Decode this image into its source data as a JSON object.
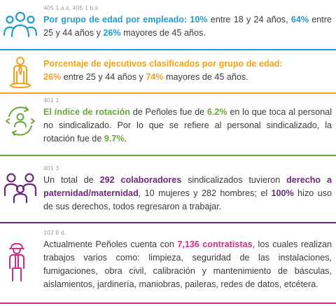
{
  "sections": [
    {
      "ref": "405 1 a.ii, 405 1 b.ii",
      "color": "#1e9ed6",
      "icon": "people-group-icon",
      "parts": [
        "Por grupo de edad por empleado:",
        " ",
        "10%",
        " entre 18 y 24 años, ",
        "64%",
        " entre 25 y 44  años y ",
        "26%",
        " mayores de 45 años."
      ]
    },
    {
      "ref": "",
      "color": "#f4a11a",
      "icon": "executive-person-icon",
      "parts": [
        "Porcentaje de ejecutivos clasificados por grupo de edad:",
        "26%",
        " entre 25 y 44 años y ",
        "74%",
        " mayores de 45 años."
      ]
    },
    {
      "ref": "401 1",
      "color": "#6aa739",
      "icon": "rotation-person-icon",
      "parts": [
        "El índice de rotación",
        " de Peñoles fue de ",
        "6.2%",
        " en lo que toca al personal no sindicalizado. Por lo que se refiere al personal sindicalizado, la rotación fue de ",
        "9.7%",
        "."
      ]
    },
    {
      "ref": "401 3",
      "color": "#6b2a77",
      "icon": "family-icon",
      "parts": [
        "Un total de ",
        "292 colaboradores",
        " sindicalizados tuvieron ",
        "derecho a paternidad/maternidad",
        ", 10 mujeres y 282 hombres; el ",
        "100%",
        " hizo uso de sus derechos, todos regresaron a trabajar."
      ]
    },
    {
      "ref": "102 8 d.",
      "color": "#cf2e86",
      "icon": "contractor-worker-icon",
      "parts": [
        "Actualmente Peñoles cuenta con ",
        "7,136 contratistas",
        ", los cuales realizan trabajos varios como: limpieza, seguridad de las instalaciones, fumigaciones, obra civil, calibración y mantenimiento de básculas, aislamientos, jardinería, maniobras, paileras, redes de datos, etcétera."
      ]
    }
  ]
}
